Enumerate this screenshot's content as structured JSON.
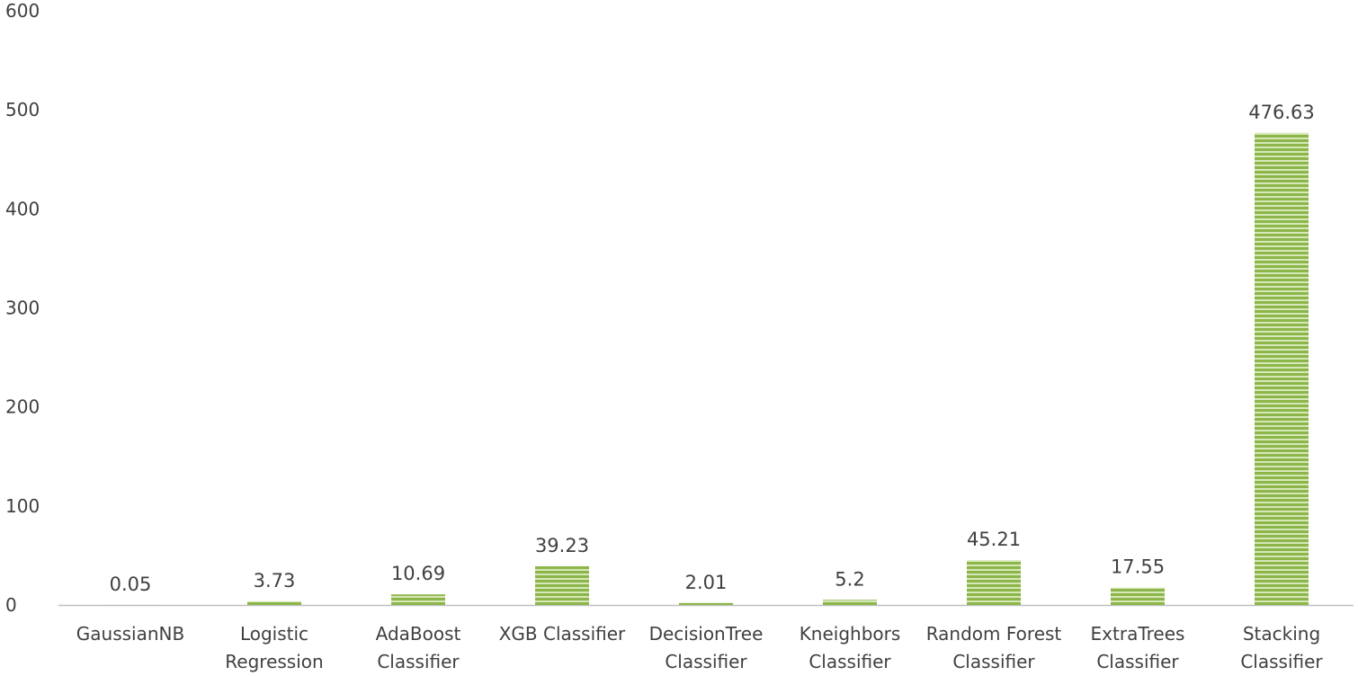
{
  "chart_data": {
    "type": "bar",
    "title": "",
    "xlabel": "",
    "ylabel": "",
    "categories": [
      "GaussianNB",
      "Logistic Regression",
      "AdaBoost Classifier",
      "XGB Classifier",
      "DecisionTree Classifier",
      "Kneighbors Classifier",
      "Random Forest Classifier",
      "ExtraTrees Classifier",
      "Stacking Classifier"
    ],
    "category_label_lines": [
      [
        "GaussianNB"
      ],
      [
        "Logistic",
        "Regression"
      ],
      [
        "AdaBoost",
        "Classifier"
      ],
      [
        "XGB Classifier"
      ],
      [
        "DecisionTree",
        "Classifier"
      ],
      [
        "Kneighbors",
        "Classifier"
      ],
      [
        "Random Forest",
        "Classifier"
      ],
      [
        "ExtraTrees",
        "Classifier"
      ],
      [
        "Stacking",
        "Classifier"
      ]
    ],
    "values": [
      0.05,
      3.73,
      10.69,
      39.23,
      2.01,
      5.2,
      45.21,
      17.55,
      476.63
    ],
    "data_labels": [
      "0.05",
      "3.73",
      "10.69",
      "39.23",
      "2.01",
      "5.2",
      "45.21",
      "17.55",
      "476.63"
    ],
    "ylim": [
      0,
      600
    ],
    "yticks": [
      0,
      100,
      200,
      300,
      400,
      500,
      600
    ],
    "grid": false,
    "legend": "none",
    "bar_color": "#8cb64a",
    "bar_stripe_color": "#d6e8b8",
    "axis_color": "#bfbfbf",
    "text_color": "#404040"
  }
}
